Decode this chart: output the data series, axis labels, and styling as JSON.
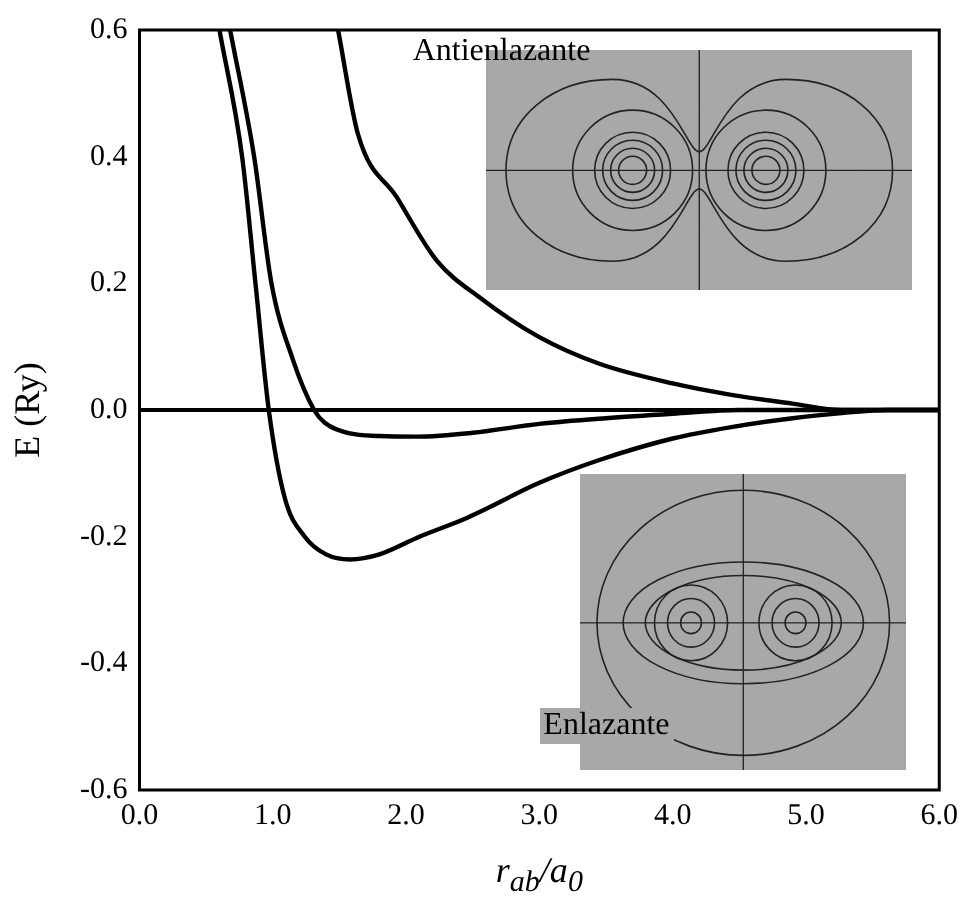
{
  "chart_data": {
    "type": "line",
    "xlabel": "r$_{ab}$/a$_{0}$",
    "ylabel": "E (Ry)",
    "annotations": [
      "Antienlazante",
      "Enlazante"
    ],
    "xlim": [
      0,
      6
    ],
    "ylim": [
      -0.6,
      0.6
    ],
    "xticks": [
      {
        "value": 0,
        "label": "0.0"
      },
      {
        "value": 1,
        "label": "1.0"
      },
      {
        "value": 2,
        "label": "2.0"
      },
      {
        "value": 3,
        "label": "3.0"
      },
      {
        "value": 4,
        "label": "4.0"
      },
      {
        "value": 5,
        "label": "5.0"
      },
      {
        "value": 6,
        "label": "6.0"
      }
    ],
    "yticks": [
      -0.6,
      -0.4,
      -0.2,
      {
        "value": 0,
        "label": "0.0"
      },
      0.2,
      0.4,
      0.6
    ],
    "series": [
      {
        "color": "#000000",
        "x": [
          1.49,
          1.64,
          1.93,
          2.23,
          2.57,
          3.0,
          3.45,
          4.0,
          4.44,
          4.9,
          5.27,
          5.6,
          6.0
        ],
        "values": [
          0.6,
          0.435,
          0.336,
          0.236,
          0.175,
          0.115,
          0.073,
          0.042,
          0.024,
          0.01,
          0.0,
          0.0,
          0.0
        ]
      },
      {
        "color": "#000000",
        "x": [
          0.6,
          0.77,
          0.87,
          0.97,
          1.09,
          1.24,
          1.4,
          1.58,
          1.8,
          2.1,
          2.46,
          3.0,
          3.45,
          4.0,
          4.44,
          4.9,
          5.27,
          5.6,
          6.0
        ],
        "values": [
          0.6,
          0.4,
          0.2,
          0.0,
          -0.139,
          -0.2,
          -0.228,
          -0.236,
          -0.228,
          -0.2,
          -0.17,
          -0.115,
          -0.079,
          -0.045,
          -0.027,
          -0.013,
          -0.005,
          0.0,
          0.0
        ]
      },
      {
        "color": "#000000",
        "x": [
          0.68,
          0.86,
          0.99,
          1.15,
          1.31,
          1.39,
          1.58,
          1.8,
          2.08,
          2.5,
          3.0,
          3.5,
          4.0,
          4.5,
          5.0,
          6.0
        ],
        "values": [
          0.6,
          0.4,
          0.2,
          0.08,
          0.0,
          -0.02,
          -0.037,
          -0.041,
          -0.042,
          -0.036,
          -0.022,
          -0.013,
          -0.006,
          0.0,
          0.0,
          0.0
        ]
      }
    ],
    "ref_lines": [
      {
        "axis": "y",
        "value": 0,
        "color": "#000000"
      }
    ],
    "grid": false,
    "legend": false,
    "marker": "none",
    "line_style": "solid"
  }
}
